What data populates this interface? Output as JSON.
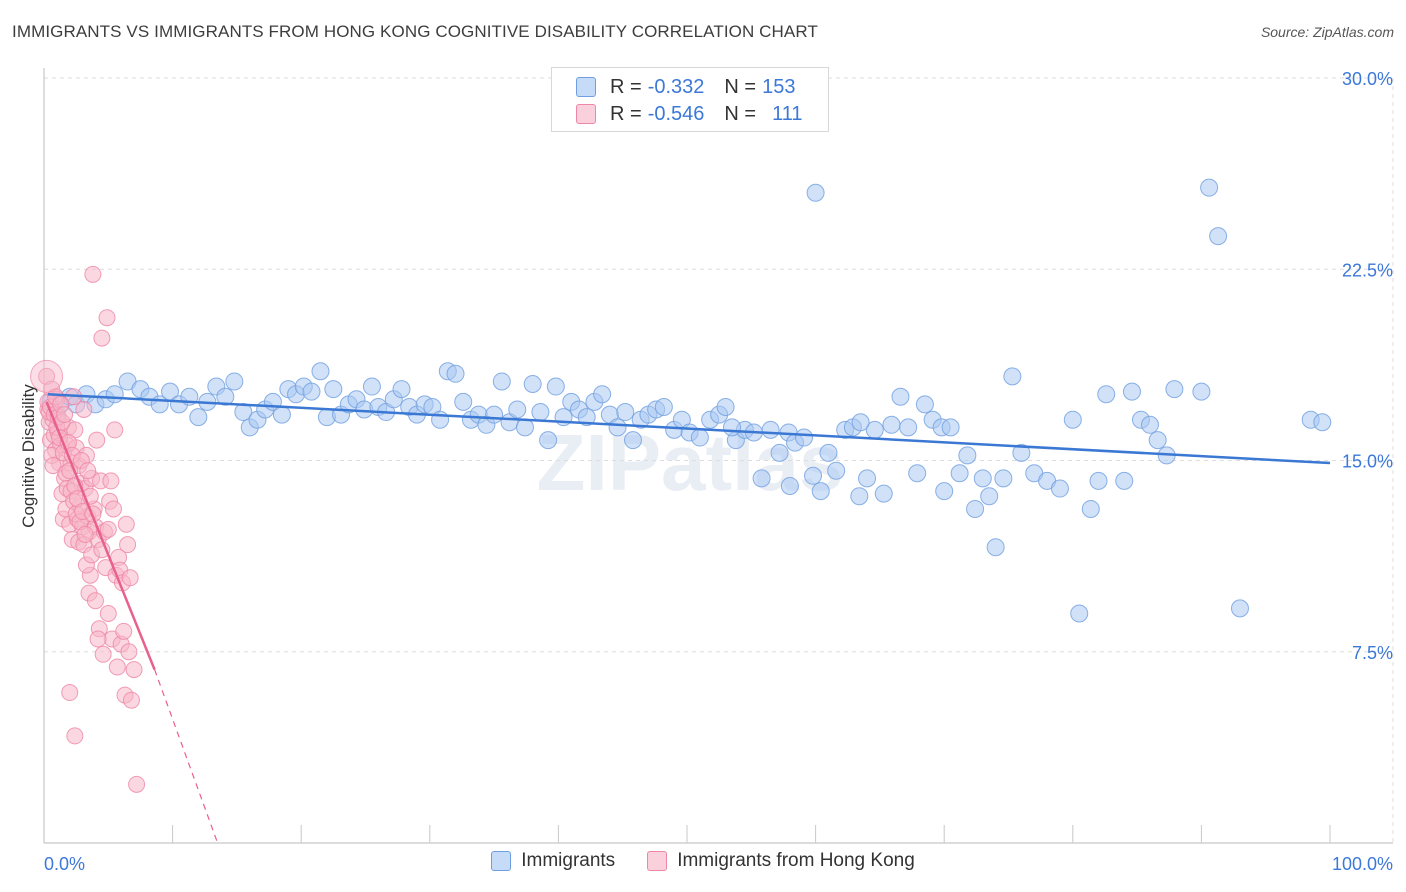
{
  "title": "IMMIGRANTS VS IMMIGRANTS FROM HONG KONG COGNITIVE DISABILITY CORRELATION CHART",
  "source": "Source: ZipAtlas.com",
  "watermark": "ZIPatlas",
  "legend_top": [
    {
      "r_label": "R =",
      "r_value": "-0.332",
      "n_label": "N =",
      "n_value": "153",
      "color": "#a9c8f2"
    },
    {
      "r_label": "R =",
      "r_value": "-0.546",
      "n_label": "N =",
      "n_value": "111",
      "color": "#f7b6c9"
    }
  ],
  "legend_bottom": [
    {
      "label": "Immigrants",
      "color": "#a9c8f2"
    },
    {
      "label": "Immigrants from Hong Kong",
      "color": "#f7b6c9"
    }
  ],
  "chart_data": {
    "type": "scatter",
    "ylabel": "Cognitive Disability",
    "xlim": [
      0,
      100
    ],
    "ylim": [
      0,
      30
    ],
    "x_ticks": [
      {
        "value": 0,
        "label": "0.0%"
      },
      {
        "value": 100,
        "label": "100.0%"
      }
    ],
    "y_ticks": [
      {
        "value": 7.5,
        "label": "7.5%"
      },
      {
        "value": 15,
        "label": "15.0%"
      },
      {
        "value": 22.5,
        "label": "22.5%"
      },
      {
        "value": 30,
        "label": "30.0%"
      }
    ],
    "grid": true,
    "colors": {
      "blue_fill": "#a9c8f2",
      "blue_stroke": "#6f9fe0",
      "blue_line": "#3a78d4",
      "pink_fill": "#f7b6c9",
      "pink_stroke": "#ee86a6",
      "pink_line": "#e8608c",
      "grid": "#dddddd",
      "tick_text": "#3c78d8"
    },
    "series": [
      {
        "name": "Immigrants",
        "trend": {
          "x0": 0.3,
          "y0": 17.6,
          "x1": 100,
          "y1": 14.9
        },
        "points": [
          [
            0.5,
            17.3
          ],
          [
            1.0,
            16.8
          ],
          [
            1.3,
            17.2
          ],
          [
            2.0,
            17.5
          ],
          [
            2.5,
            17.2
          ],
          [
            3.3,
            17.6
          ],
          [
            4.0,
            17.2
          ],
          [
            4.8,
            17.4
          ],
          [
            5.5,
            17.6
          ],
          [
            6.5,
            18.1
          ],
          [
            7.5,
            17.8
          ],
          [
            8.2,
            17.5
          ],
          [
            9.0,
            17.2
          ],
          [
            9.8,
            17.7
          ],
          [
            10.5,
            17.2
          ],
          [
            11.3,
            17.5
          ],
          [
            12.0,
            16.7
          ],
          [
            12.7,
            17.3
          ],
          [
            13.4,
            17.9
          ],
          [
            14.1,
            17.5
          ],
          [
            14.8,
            18.1
          ],
          [
            15.5,
            16.9
          ],
          [
            16.0,
            16.3
          ],
          [
            16.6,
            16.6
          ],
          [
            17.2,
            17.0
          ],
          [
            17.8,
            17.3
          ],
          [
            18.5,
            16.8
          ],
          [
            19.0,
            17.8
          ],
          [
            19.6,
            17.6
          ],
          [
            20.2,
            17.9
          ],
          [
            20.8,
            17.7
          ],
          [
            21.5,
            18.5
          ],
          [
            22.0,
            16.7
          ],
          [
            22.5,
            17.8
          ],
          [
            23.1,
            16.8
          ],
          [
            23.7,
            17.2
          ],
          [
            24.3,
            17.4
          ],
          [
            24.9,
            17.0
          ],
          [
            25.5,
            17.9
          ],
          [
            26.0,
            17.1
          ],
          [
            26.6,
            16.9
          ],
          [
            27.2,
            17.4
          ],
          [
            27.8,
            17.8
          ],
          [
            28.4,
            17.1
          ],
          [
            29.0,
            16.8
          ],
          [
            29.6,
            17.2
          ],
          [
            30.2,
            17.1
          ],
          [
            30.8,
            16.6
          ],
          [
            31.4,
            18.5
          ],
          [
            32.0,
            18.4
          ],
          [
            32.6,
            17.3
          ],
          [
            33.2,
            16.6
          ],
          [
            33.8,
            16.8
          ],
          [
            34.4,
            16.4
          ],
          [
            35.0,
            16.8
          ],
          [
            35.6,
            18.1
          ],
          [
            36.2,
            16.5
          ],
          [
            36.8,
            17.0
          ],
          [
            37.4,
            16.3
          ],
          [
            38.0,
            18.0
          ],
          [
            38.6,
            16.9
          ],
          [
            39.2,
            15.8
          ],
          [
            39.8,
            17.9
          ],
          [
            40.4,
            16.7
          ],
          [
            41.0,
            17.3
          ],
          [
            41.6,
            17.0
          ],
          [
            42.2,
            16.7
          ],
          [
            42.8,
            17.3
          ],
          [
            43.4,
            17.6
          ],
          [
            44.0,
            16.8
          ],
          [
            44.6,
            16.3
          ],
          [
            45.2,
            16.9
          ],
          [
            45.8,
            15.8
          ],
          [
            46.4,
            16.6
          ],
          [
            47.0,
            16.8
          ],
          [
            47.6,
            17.0
          ],
          [
            48.2,
            17.1
          ],
          [
            49.0,
            16.2
          ],
          [
            49.6,
            16.6
          ],
          [
            50.2,
            16.1
          ],
          [
            51.0,
            15.9
          ],
          [
            51.8,
            16.6
          ],
          [
            52.5,
            16.8
          ],
          [
            53.0,
            17.1
          ],
          [
            53.8,
            15.8
          ],
          [
            54.5,
            16.2
          ],
          [
            55.2,
            16.1
          ],
          [
            55.8,
            14.3
          ],
          [
            56.5,
            16.2
          ],
          [
            57.2,
            15.3
          ],
          [
            57.9,
            16.1
          ],
          [
            58.4,
            15.7
          ],
          [
            59.1,
            15.9
          ],
          [
            59.8,
            14.4
          ],
          [
            60.4,
            13.8
          ],
          [
            61.0,
            15.3
          ],
          [
            61.6,
            14.6
          ],
          [
            62.3,
            16.2
          ],
          [
            62.9,
            16.3
          ],
          [
            63.4,
            13.6
          ],
          [
            64.0,
            14.3
          ],
          [
            64.6,
            16.2
          ],
          [
            65.3,
            13.7
          ],
          [
            65.9,
            16.4
          ],
          [
            66.6,
            17.5
          ],
          [
            67.2,
            16.3
          ],
          [
            67.9,
            14.5
          ],
          [
            68.5,
            17.2
          ],
          [
            69.1,
            16.6
          ],
          [
            69.8,
            16.3
          ],
          [
            70.5,
            16.3
          ],
          [
            71.2,
            14.5
          ],
          [
            71.8,
            15.2
          ],
          [
            72.4,
            13.1
          ],
          [
            73.0,
            14.3
          ],
          [
            73.5,
            13.6
          ],
          [
            74.0,
            11.6
          ],
          [
            74.6,
            14.3
          ],
          [
            75.3,
            18.3
          ],
          [
            76.0,
            15.3
          ],
          [
            77.0,
            14.5
          ],
          [
            78.0,
            14.2
          ],
          [
            79.0,
            13.9
          ],
          [
            80.0,
            16.6
          ],
          [
            80.5,
            9.0
          ],
          [
            81.4,
            13.1
          ],
          [
            82.0,
            14.2
          ],
          [
            82.6,
            17.6
          ],
          [
            84.0,
            14.2
          ],
          [
            84.6,
            17.7
          ],
          [
            85.3,
            16.6
          ],
          [
            86.0,
            16.4
          ],
          [
            86.6,
            15.8
          ],
          [
            87.3,
            15.2
          ],
          [
            87.9,
            17.8
          ],
          [
            90.0,
            17.7
          ],
          [
            90.6,
            25.7
          ],
          [
            91.3,
            23.8
          ],
          [
            93.0,
            9.2
          ],
          [
            98.5,
            16.6
          ],
          [
            99.4,
            16.5
          ],
          [
            60.0,
            25.5
          ],
          [
            58.0,
            14.0
          ],
          [
            53.5,
            16.3
          ],
          [
            63.5,
            16.5
          ],
          [
            70.0,
            13.8
          ]
        ]
      },
      {
        "name": "Immigrants from Hong Kong",
        "trend": {
          "x0": 0.2,
          "y0": 17.3,
          "x1": 8.6,
          "y1": 6.8,
          "dash_x1": 13.5,
          "dash_y1": 0
        },
        "points": [
          [
            0.2,
            18.3
          ],
          [
            0.3,
            17.0
          ],
          [
            0.4,
            16.5
          ],
          [
            0.5,
            15.8
          ],
          [
            0.6,
            17.8
          ],
          [
            0.7,
            16.6
          ],
          [
            0.8,
            16.0
          ],
          [
            0.9,
            15.4
          ],
          [
            1.0,
            17.4
          ],
          [
            1.1,
            16.1
          ],
          [
            1.2,
            14.9
          ],
          [
            1.3,
            15.6
          ],
          [
            1.4,
            13.7
          ],
          [
            1.5,
            12.7
          ],
          [
            1.6,
            14.3
          ],
          [
            1.7,
            13.1
          ],
          [
            1.8,
            15.6
          ],
          [
            1.9,
            16.3
          ],
          [
            2.0,
            12.5
          ],
          [
            2.1,
            14.9
          ],
          [
            2.2,
            11.9
          ],
          [
            2.3,
            17.5
          ],
          [
            2.4,
            16.2
          ],
          [
            2.5,
            15.5
          ],
          [
            2.6,
            12.7
          ],
          [
            2.7,
            14.8
          ],
          [
            2.8,
            13.2
          ],
          [
            2.9,
            14.1
          ],
          [
            3.0,
            12.4
          ],
          [
            3.1,
            17.0
          ],
          [
            3.2,
            13.9
          ],
          [
            3.3,
            15.2
          ],
          [
            3.4,
            12.8
          ],
          [
            3.5,
            12.2
          ],
          [
            3.6,
            10.5
          ],
          [
            3.7,
            14.3
          ],
          [
            3.8,
            22.3
          ],
          [
            3.9,
            13.1
          ],
          [
            4.0,
            12.4
          ],
          [
            4.1,
            15.8
          ],
          [
            4.2,
            11.9
          ],
          [
            4.3,
            8.4
          ],
          [
            4.4,
            14.2
          ],
          [
            4.5,
            19.8
          ],
          [
            4.6,
            7.4
          ],
          [
            4.7,
            12.2
          ],
          [
            4.8,
            10.8
          ],
          [
            4.9,
            20.6
          ],
          [
            5.0,
            12.3
          ],
          [
            5.1,
            13.4
          ],
          [
            5.2,
            14.2
          ],
          [
            5.3,
            8.0
          ],
          [
            5.4,
            13.1
          ],
          [
            5.5,
            16.2
          ],
          [
            5.6,
            10.5
          ],
          [
            5.7,
            6.9
          ],
          [
            5.8,
            11.2
          ],
          [
            5.9,
            10.7
          ],
          [
            6.0,
            7.8
          ],
          [
            6.1,
            10.2
          ],
          [
            6.2,
            8.3
          ],
          [
            6.3,
            5.8
          ],
          [
            6.4,
            12.5
          ],
          [
            6.5,
            11.7
          ],
          [
            6.6,
            7.5
          ],
          [
            6.7,
            10.4
          ],
          [
            6.8,
            5.6
          ],
          [
            7.0,
            6.8
          ],
          [
            7.2,
            2.3
          ],
          [
            2.0,
            5.9
          ],
          [
            2.4,
            4.2
          ],
          [
            0.3,
            17.3
          ],
          [
            0.4,
            16.9
          ],
          [
            0.5,
            17.1
          ],
          [
            0.6,
            15.2
          ],
          [
            0.7,
            14.8
          ],
          [
            0.8,
            16.8
          ],
          [
            0.9,
            17.5
          ],
          [
            1.0,
            16.3
          ],
          [
            1.1,
            16.7
          ],
          [
            1.2,
            15.9
          ],
          [
            1.3,
            17.2
          ],
          [
            1.4,
            16.5
          ],
          [
            1.5,
            15.3
          ],
          [
            1.6,
            16.8
          ],
          [
            1.7,
            14.5
          ],
          [
            1.8,
            13.9
          ],
          [
            1.9,
            15.7
          ],
          [
            2.0,
            14.6
          ],
          [
            2.1,
            13.8
          ],
          [
            2.2,
            15.2
          ],
          [
            2.3,
            13.4
          ],
          [
            2.4,
            14.0
          ],
          [
            2.5,
            12.9
          ],
          [
            2.6,
            13.5
          ],
          [
            2.7,
            11.8
          ],
          [
            2.8,
            12.6
          ],
          [
            2.9,
            15.0
          ],
          [
            3.0,
            13.0
          ],
          [
            3.1,
            11.7
          ],
          [
            3.2,
            12.1
          ],
          [
            3.3,
            10.9
          ],
          [
            3.4,
            14.6
          ],
          [
            3.5,
            9.8
          ],
          [
            3.6,
            13.6
          ],
          [
            3.7,
            11.3
          ],
          [
            3.8,
            12.9
          ],
          [
            4.0,
            9.5
          ],
          [
            4.2,
            8.0
          ],
          [
            4.5,
            11.5
          ],
          [
            5.0,
            9.0
          ]
        ]
      }
    ]
  }
}
